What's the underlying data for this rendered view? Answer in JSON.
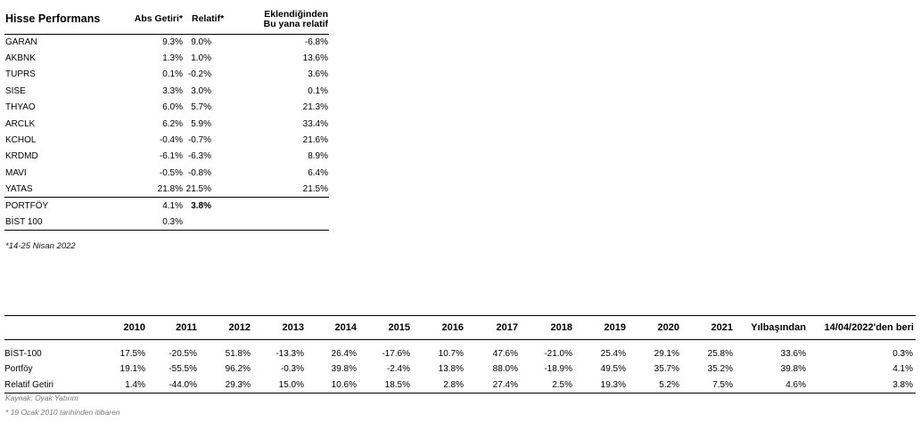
{
  "performance_table": {
    "headers": {
      "stock": "Hisse Performans",
      "abs_return": "Abs Getiri*",
      "relative": "Relatif*",
      "since_added_line1": "Eklendiğinden",
      "since_added_line2": "Bu yana relatif"
    },
    "rows": [
      {
        "stock": "GARAN",
        "abs": "9.3%",
        "rel": "9.0%",
        "since": "-6.8%"
      },
      {
        "stock": "AKBNK",
        "abs": "1.3%",
        "rel": "1.0%",
        "since": "13.6%"
      },
      {
        "stock": "TUPRS",
        "abs": "0.1%",
        "rel": "-0.2%",
        "since": "3.6%"
      },
      {
        "stock": "SISE",
        "abs": "3.3%",
        "rel": "3.0%",
        "since": "0.1%"
      },
      {
        "stock": "THYAO",
        "abs": "6.0%",
        "rel": "5.7%",
        "since": "21.3%"
      },
      {
        "stock": "ARCLK",
        "abs": "6.2%",
        "rel": "5.9%",
        "since": "33.4%"
      },
      {
        "stock": "KCHOL",
        "abs": "-0.4%",
        "rel": "-0.7%",
        "since": "21.6%"
      },
      {
        "stock": "KRDMD",
        "abs": "-6.1%",
        "rel": "-6.3%",
        "since": "8.9%"
      },
      {
        "stock": "MAVI",
        "abs": "-0.5%",
        "rel": "-0.8%",
        "since": "6.4%"
      },
      {
        "stock": "YATAS",
        "abs": "21.8%",
        "rel": "21.5%",
        "since": "21.5%"
      }
    ],
    "portfolio": {
      "stock": "PORTFÖY",
      "abs": "4.1%",
      "rel": "3.8%",
      "since": ""
    },
    "index": {
      "stock": "BİST 100",
      "abs": "0.3%",
      "rel": "",
      "since": ""
    }
  },
  "period_note": "*14-25 Nisan 2022",
  "yearly_table": {
    "headers": [
      "",
      "2010",
      "2011",
      "2012",
      "2013",
      "2014",
      "2015",
      "2016",
      "2017",
      "2018",
      "2019",
      "2020",
      "2021",
      "Yılbaşından",
      "14/04/2022'den beri"
    ],
    "rows": [
      [
        "BİST-100",
        "17.5%",
        "-20.5%",
        "51.8%",
        "-13.3%",
        "26.4%",
        "-17.6%",
        "10.7%",
        "47.6%",
        "-21.0%",
        "25.4%",
        "29.1%",
        "25.8%",
        "33.6%",
        "0.3%"
      ],
      [
        "Portföy",
        "19.1%",
        "-55.5%",
        "96.2%",
        "-0.3%",
        "39.8%",
        "-2.4%",
        "13.8%",
        "88.0%",
        "-18.9%",
        "49.5%",
        "35.7%",
        "35.2%",
        "39.8%",
        "4.1%"
      ],
      [
        "Relatif Getiri",
        "1.4%",
        "-44.0%",
        "29.3%",
        "15.0%",
        "10.6%",
        "18.5%",
        "2.8%",
        "27.4%",
        "2.5%",
        "19.3%",
        "5.2%",
        "7.5%",
        "4.6%",
        "3.8%"
      ]
    ]
  },
  "source_note": "Kaynak: Oyak Yatırım",
  "start_note": "* 19 Ocak 2010 tarihinden itibaren"
}
